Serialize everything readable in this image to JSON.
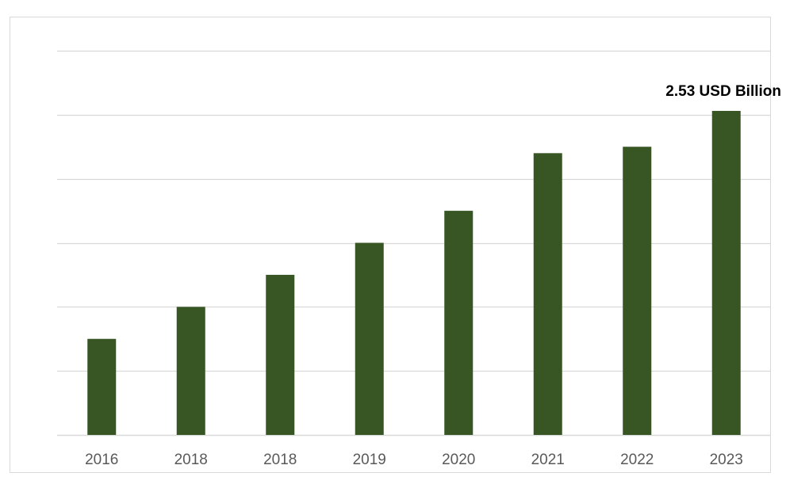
{
  "chart_data": {
    "type": "bar",
    "categories": [
      "2016",
      "2018",
      "2018",
      "2019",
      "2020",
      "2021",
      "2022",
      "2023"
    ],
    "values": [
      0.75,
      1.0,
      1.25,
      1.5,
      1.75,
      2.2,
      2.25,
      2.53
    ],
    "ylim": [
      0,
      3.0
    ],
    "grid": true,
    "yticks_count": 7,
    "data_labels": [
      "",
      "",
      "",
      "",
      "",
      "",
      "",
      "2.53 USD Billion"
    ],
    "colors": {
      "bar": "#375623",
      "grid": "#d9d9d9",
      "axis_text": "#595959"
    }
  }
}
